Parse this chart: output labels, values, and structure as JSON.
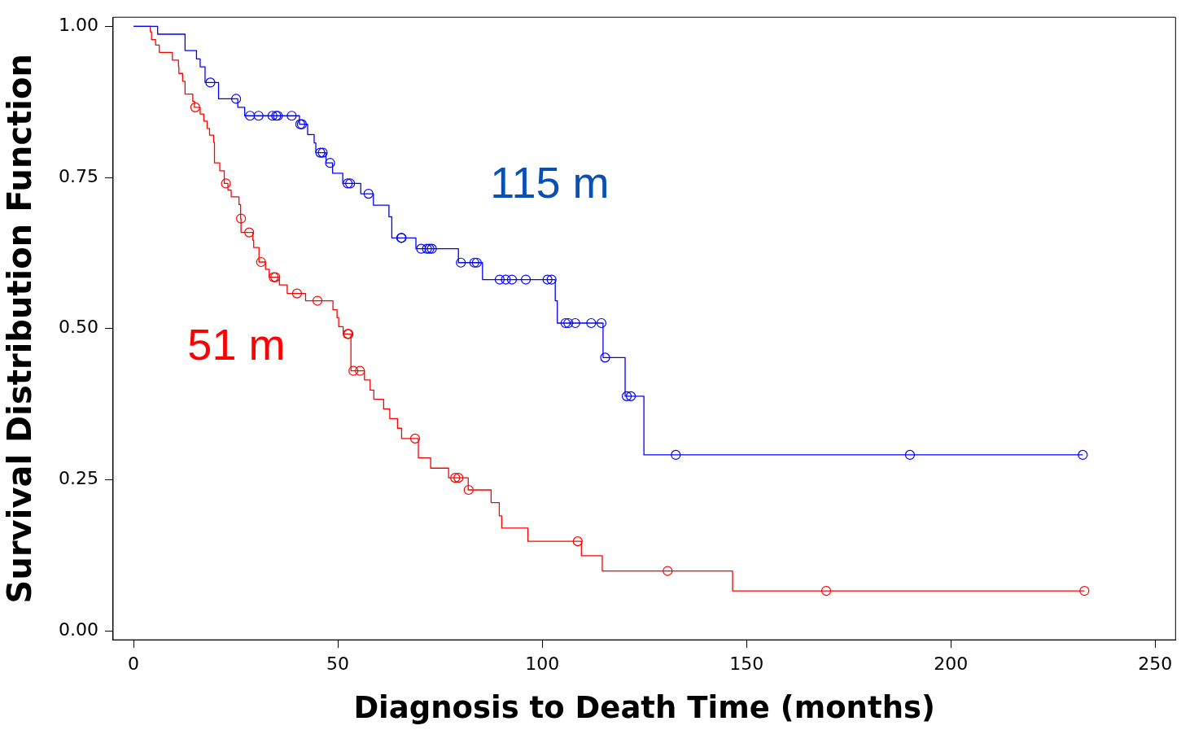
{
  "chart_data": {
    "type": "step",
    "xlabel": "Diagnosis to Death Time (months)",
    "ylabel": "Survival Distribution Function",
    "xlim": [
      -5,
      255
    ],
    "xticks": [
      0,
      50,
      100,
      150,
      200,
      250
    ],
    "ylim": [
      -0.015,
      1.015
    ],
    "yticks": [
      {
        "value": 0,
        "label": "0.00"
      },
      {
        "value": 0.25,
        "label": "0.25"
      },
      {
        "value": 0.5,
        "label": "0.50"
      },
      {
        "value": 0.75,
        "label": "0.75"
      },
      {
        "value": 1,
        "label": "1.00"
      }
    ],
    "grid": false,
    "series": [
      {
        "name": "115 m",
        "type": "step",
        "color": "#0000ff",
        "x": [
          0,
          5.9,
          12.6,
          15.4,
          16.3,
          17.5,
          20.8,
          25.5,
          27.2,
          40.6,
          42.6,
          44.2,
          44.6,
          47.1,
          48.7,
          51.2,
          55.6,
          58.7,
          62.5,
          63.2,
          69.1,
          79.5,
          85.4,
          103.2,
          103.7,
          114.9,
          120.3,
          124.9,
          232.3
        ],
        "values": [
          1,
          0.987,
          0.96,
          0.946,
          0.933,
          0.907,
          0.88,
          0.866,
          0.852,
          0.838,
          0.821,
          0.807,
          0.791,
          0.774,
          0.757,
          0.74,
          0.723,
          0.704,
          0.685,
          0.65,
          0.632,
          0.609,
          0.581,
          0.546,
          0.509,
          0.452,
          0.388,
          0.291,
          0.291
        ]
      },
      {
        "name": "51 m",
        "type": "step",
        "color": "#ff0000",
        "x": [
          0,
          4.1,
          4.4,
          5.4,
          6.3,
          9.5,
          11.0,
          11.1,
          12.0,
          12.6,
          14.5,
          14.9,
          16.3,
          17.2,
          18.0,
          18.6,
          19.6,
          19.8,
          21.1,
          22.2,
          23.1,
          23.9,
          25.8,
          26.2,
          26.3,
          29.2,
          29.4,
          30.7,
          32.3,
          33.2,
          35.7,
          37.6,
          42.1,
          48.8,
          49.8,
          50.2,
          51.3,
          53.2,
          56.5,
          57.9,
          58.8,
          61.2,
          62.7,
          64.6,
          65.6,
          69.7,
          72.7,
          77.1,
          81.9,
          87.5,
          89.5,
          90.1,
          96.5,
          109.6,
          114.7,
          146.6,
          232.7
        ],
        "values": [
          1,
          0.991,
          0.978,
          0.969,
          0.957,
          0.944,
          0.933,
          0.922,
          0.909,
          0.888,
          0.876,
          0.866,
          0.855,
          0.843,
          0.831,
          0.82,
          0.808,
          0.774,
          0.761,
          0.74,
          0.729,
          0.718,
          0.705,
          0.682,
          0.659,
          0.646,
          0.634,
          0.61,
          0.598,
          0.585,
          0.572,
          0.558,
          0.546,
          0.531,
          0.518,
          0.503,
          0.491,
          0.43,
          0.415,
          0.398,
          0.383,
          0.367,
          0.351,
          0.335,
          0.318,
          0.286,
          0.269,
          0.253,
          0.233,
          0.212,
          0.19,
          0.17,
          0.148,
          0.124,
          0.099,
          0.066,
          0.066
        ]
      },
      {
        "type": "scatter",
        "marker": "circle",
        "color": "#0000ff",
        "x": [
          18.8,
          25.1,
          28.5,
          30.6,
          34,
          34.9,
          35.3,
          38.7,
          40.8,
          41.2,
          45.7,
          46.3,
          48.1,
          52.4,
          53,
          57.5,
          65.5,
          65.6,
          70.4,
          71.8,
          72.4,
          73,
          80.1,
          83.4,
          84,
          89.6,
          91.1,
          92.6,
          96,
          101.3,
          102.3,
          105.7,
          106.4,
          108.1,
          112,
          114.5,
          115.4,
          120.7,
          121.7,
          132.7,
          190,
          232.3
        ],
        "values": [
          0.907,
          0.88,
          0.852,
          0.852,
          0.852,
          0.852,
          0.852,
          0.852,
          0.838,
          0.838,
          0.791,
          0.791,
          0.774,
          0.74,
          0.74,
          0.723,
          0.65,
          0.65,
          0.632,
          0.632,
          0.632,
          0.632,
          0.609,
          0.609,
          0.609,
          0.581,
          0.581,
          0.581,
          0.581,
          0.581,
          0.581,
          0.509,
          0.509,
          0.509,
          0.509,
          0.509,
          0.452,
          0.388,
          0.388,
          0.291,
          0.291,
          0.291
        ]
      },
      {
        "type": "scatter",
        "marker": "circle",
        "color": "#ff0000",
        "x": [
          15.1,
          22.6,
          26.3,
          28.3,
          31.2,
          34.3,
          34.7,
          40,
          45,
          52.4,
          52.6,
          53.8,
          55.4,
          68.9,
          78.7,
          79.5,
          82,
          108.7,
          130.7,
          169.5,
          232.7
        ],
        "values": [
          0.866,
          0.74,
          0.682,
          0.659,
          0.61,
          0.585,
          0.585,
          0.558,
          0.546,
          0.491,
          0.491,
          0.43,
          0.43,
          0.318,
          0.253,
          0.253,
          0.233,
          0.148,
          0.099,
          0.066,
          0.066
        ]
      }
    ]
  }
}
